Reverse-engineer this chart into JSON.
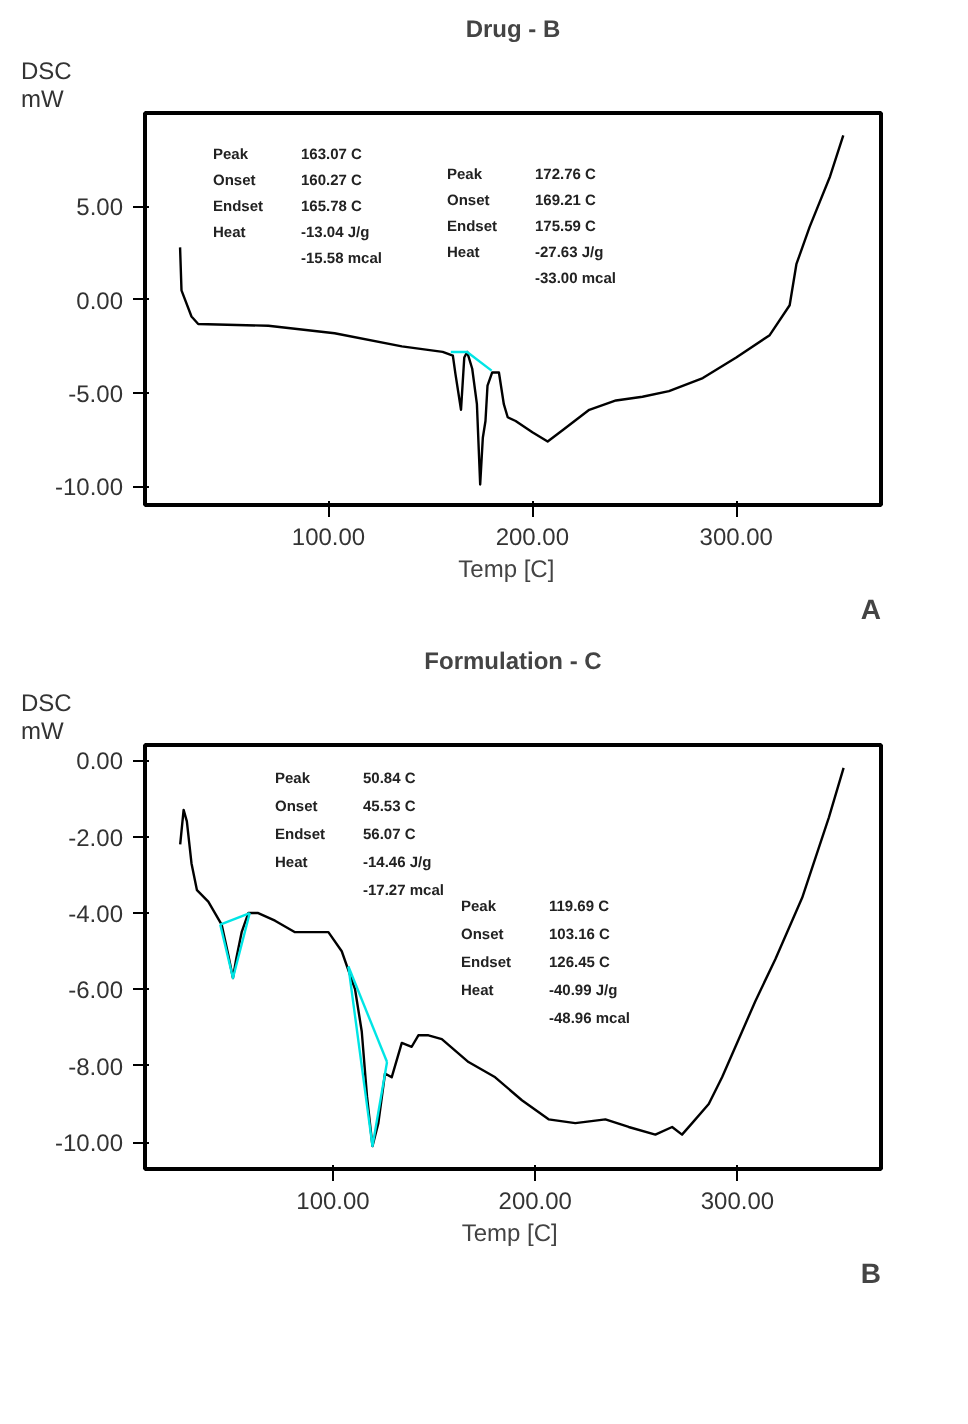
{
  "chart_data": [
    {
      "type": "line",
      "title": "Drug - B",
      "xlabel": "Temp   [C]",
      "ylabel": "DSC\nmW",
      "grid": false,
      "xlim": [
        10,
        371
      ],
      "ylim": [
        -11,
        10
      ],
      "xticks": [
        {
          "value": 100,
          "label": "100.00"
        },
        {
          "value": 200,
          "label": "200.00"
        },
        {
          "value": 300,
          "label": "300.00"
        }
      ],
      "yticks": [
        {
          "value": 5,
          "label": "5.00"
        },
        {
          "value": 0,
          "label": "0.00"
        },
        {
          "value": -5,
          "label": "-5.00"
        },
        {
          "value": -10,
          "label": "-10.00"
        }
      ],
      "series": [
        {
          "color": "#000000",
          "x": [
            27.2,
            27.9,
            32.8,
            36.1,
            70.5,
            103,
            136,
            156,
            161,
            162.3,
            165,
            166.6,
            168,
            170.5,
            172.8,
            174.4,
            175.7,
            177,
            178,
            180.3,
            183.6,
            186,
            187.9,
            191.8,
            200,
            207.5,
            214.8,
            227.9,
            241,
            254,
            267,
            283.6,
            300,
            316.4,
            326.2,
            329.5,
            336,
            346,
            352.5
          ],
          "values": [
            2.8,
            0.5,
            -0.9,
            -1.3,
            -1.4,
            -1.8,
            -2.5,
            -2.8,
            -3.0,
            -4.0,
            -5.9,
            -3.1,
            -2.8,
            -3.7,
            -5.6,
            -9.9,
            -7.4,
            -6.5,
            -4.6,
            -3.9,
            -3.9,
            -5.6,
            -6.3,
            -6.5,
            -7.1,
            -7.6,
            -7.0,
            -5.9,
            -5.4,
            -5.2,
            -4.9,
            -4.2,
            -3.1,
            -1.9,
            -0.3,
            1.9,
            3.9,
            6.6,
            8.8
          ]
        },
        {
          "color": "#00e5e5",
          "x": [
            160,
            168,
            180
          ],
          "values": [
            -2.8,
            -2.8,
            -3.8
          ]
        }
      ],
      "annotations": [
        "Peak",
        "163.07 C",
        "Onset",
        "160.27 C",
        "Endset",
        "165.78 C",
        "Heat",
        "-13.04 J/g",
        "-15.58 mcal",
        "Peak",
        "172.76 C",
        "Onset",
        "169.21 C",
        "Endset",
        "175.59 C",
        "Heat",
        "-27.63 J/g",
        "-33.00 mcal",
        "A"
      ]
    },
    {
      "type": "line",
      "title": "Formulation - C",
      "xlabel": "Temp  [C]",
      "ylabel": "DSC\nmW",
      "grid": false,
      "xlim": [
        7,
        371
      ],
      "ylim": [
        -10.7,
        0.4
      ],
      "xticks": [
        {
          "value": 100,
          "label": "100.00"
        },
        {
          "value": 200,
          "label": "200.00"
        },
        {
          "value": 300,
          "label": "300.00"
        }
      ],
      "yticks": [
        {
          "value": 0,
          "label": "0.00"
        },
        {
          "value": -2,
          "label": "-2.00"
        },
        {
          "value": -4,
          "label": "-4.00"
        },
        {
          "value": -6,
          "label": "-6.00"
        },
        {
          "value": -8,
          "label": "-8.00"
        },
        {
          "value": -10,
          "label": "-10.00"
        }
      ],
      "series": [
        {
          "color": "#000000",
          "x": [
            24.4,
            26.1,
            27.7,
            30,
            32.7,
            38.3,
            44.9,
            48.2,
            50.5,
            52.1,
            54.8,
            58.1,
            63,
            71.3,
            81.2,
            97.7,
            104.3,
            110.9,
            114.2,
            116.8,
            119.5,
            122.4,
            125.7,
            129,
            134,
            138.9,
            142.2,
            147.2,
            153.8,
            167,
            180.2,
            193.4,
            206.6,
            219.8,
            234.7,
            246.2,
            259.4,
            267.7,
            272.6,
            277.6,
            285.8,
            292.4,
            302.3,
            308.9,
            318.8,
            332,
            345.2,
            352.5
          ],
          "values": [
            -2.2,
            -1.3,
            -1.6,
            -2.7,
            -3.4,
            -3.7,
            -4.3,
            -5.1,
            -5.7,
            -5.2,
            -4.5,
            -4.0,
            -4.0,
            -4.2,
            -4.5,
            -4.5,
            -5.0,
            -6.0,
            -7.1,
            -8.8,
            -10.1,
            -9.5,
            -8.2,
            -8.3,
            -7.4,
            -7.5,
            -7.2,
            -7.2,
            -7.3,
            -7.9,
            -8.3,
            -8.9,
            -9.4,
            -9.5,
            -9.4,
            -9.6,
            -9.8,
            -9.6,
            -9.8,
            -9.5,
            -9.0,
            -8.3,
            -7.1,
            -6.3,
            -5.2,
            -3.6,
            -1.5,
            -0.2
          ]
        },
        {
          "color": "#00e5e5",
          "x": [
            44.2,
            50.5,
            58.8
          ],
          "values": [
            -4.3,
            -5.7,
            -4.0
          ]
        },
        {
          "color": "#00e5e5",
          "x": [
            44.2,
            58.8
          ],
          "values": [
            -4.3,
            -4.0
          ]
        },
        {
          "color": "#00e5e5",
          "x": [
            107.6,
            119.5,
            126.7
          ],
          "values": [
            -5.4,
            -10.1,
            -7.9
          ]
        },
        {
          "color": "#00e5e5",
          "x": [
            107.6,
            126.7
          ],
          "values": [
            -5.4,
            -7.9
          ]
        }
      ],
      "annotations": [
        "Peak",
        "50.84 C",
        "Onset",
        "45.53 C",
        "Endset",
        "56.07 C",
        "Heat",
        "-14.46 J/g",
        "-17.27 mcal",
        "Peak",
        "119.69 C",
        "Onset",
        "103.16 C",
        "Endset",
        "126.45 C",
        "Heat",
        "-40.99 J/g",
        "-48.96 mcal",
        "B"
      ]
    }
  ]
}
